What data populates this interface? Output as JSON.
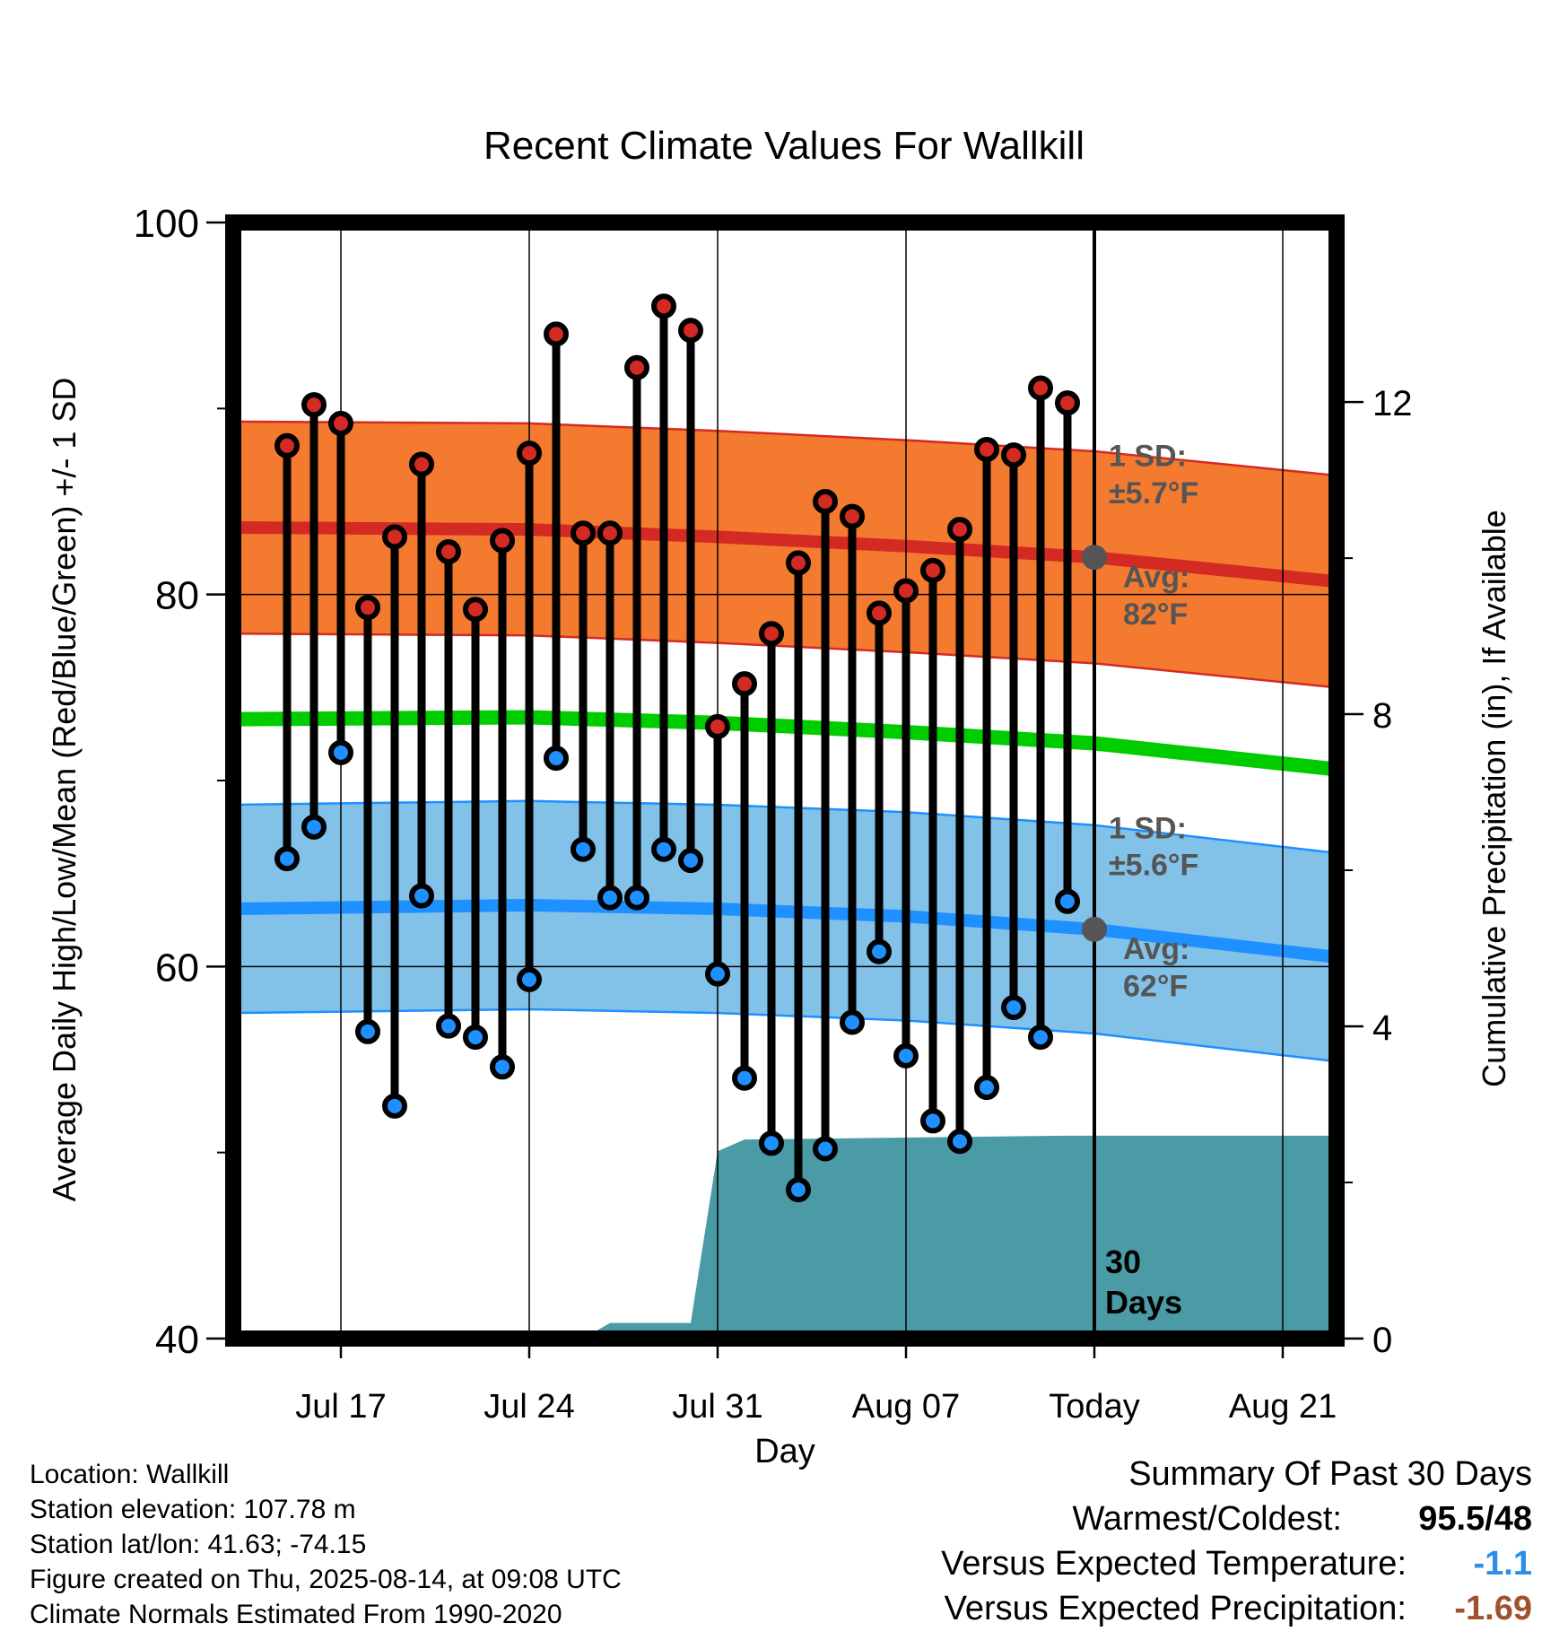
{
  "chart_data": {
    "type": "line",
    "title": "Recent Climate Values For Wallkill",
    "xlabel": "Day",
    "ylabel": "Average Daily High/Low/Mean (Red/Blue/Green) +/- 1 SD",
    "y2label": "Cumulative Precipitation (in), If Available",
    "ylim": [
      40,
      100
    ],
    "y_ticks": [
      "40",
      "60",
      "80",
      "100"
    ],
    "y2lim": [
      0,
      14.3
    ],
    "y2_ticks": [
      "0",
      "4",
      "8",
      "12"
    ],
    "x_ticks": [
      {
        "date": "2025-07-17",
        "label": "Jul 17"
      },
      {
        "date": "2025-07-24",
        "label": "Jul 24"
      },
      {
        "date": "2025-07-31",
        "label": "Jul 31"
      },
      {
        "date": "2025-08-07",
        "label": "Aug 07"
      },
      {
        "date": "2025-08-14",
        "label": "Today"
      },
      {
        "date": "2025-08-21",
        "label": "Aug 21"
      }
    ],
    "xlim": [
      "2025-07-13",
      "2025-08-23"
    ],
    "today": "2025-08-14",
    "days_window_label": [
      "30",
      "Days"
    ],
    "daily": {
      "dates": [
        "2025-07-15",
        "2025-07-16",
        "2025-07-17",
        "2025-07-18",
        "2025-07-19",
        "2025-07-20",
        "2025-07-21",
        "2025-07-22",
        "2025-07-23",
        "2025-07-24",
        "2025-07-25",
        "2025-07-26",
        "2025-07-27",
        "2025-07-28",
        "2025-07-29",
        "2025-07-30",
        "2025-07-31",
        "2025-08-01",
        "2025-08-02",
        "2025-08-03",
        "2025-08-04",
        "2025-08-05",
        "2025-08-06",
        "2025-08-07",
        "2025-08-08",
        "2025-08-09",
        "2025-08-10",
        "2025-08-11",
        "2025-08-12",
        "2025-08-13"
      ],
      "high": [
        88.0,
        90.2,
        89.2,
        79.3,
        83.1,
        87.0,
        82.3,
        79.2,
        82.9,
        87.6,
        94.0,
        83.3,
        83.3,
        92.2,
        95.5,
        94.2,
        72.9,
        75.2,
        77.9,
        81.7,
        85.0,
        84.2,
        79.0,
        80.2,
        81.3,
        83.5,
        87.8,
        87.5,
        91.1,
        90.3
      ],
      "low": [
        65.8,
        67.5,
        71.5,
        56.5,
        52.5,
        63.8,
        56.8,
        56.2,
        54.6,
        59.3,
        71.2,
        66.3,
        63.7,
        63.7,
        66.3,
        65.7,
        59.6,
        54.0,
        50.5,
        48.0,
        50.2,
        57.0,
        60.8,
        55.2,
        51.7,
        50.6,
        53.5,
        57.8,
        56.2,
        63.5
      ]
    },
    "normals": {
      "dates": [
        "2025-07-15",
        "2025-07-24",
        "2025-07-31",
        "2025-08-07",
        "2025-08-14",
        "2025-08-23"
      ],
      "high_avg": [
        83.6,
        83.5,
        83.1,
        82.6,
        82.0,
        80.7
      ],
      "low_avg": [
        63.1,
        63.3,
        63.1,
        62.7,
        62.0,
        60.5
      ],
      "mean_avg": [
        73.3,
        73.4,
        73.1,
        72.6,
        72.0,
        70.6
      ]
    },
    "high_sd_label": [
      "1 SD:",
      "±5.7°F"
    ],
    "high_avg_label": [
      "Avg:",
      "82°F"
    ],
    "low_sd_label": [
      "1 SD:",
      "±5.6°F"
    ],
    "low_avg_label": [
      "Avg:",
      "62°F"
    ],
    "high_sd": 5.7,
    "low_sd": 5.6,
    "precip_cumulative": {
      "dates": [
        "2025-07-13",
        "2025-07-26",
        "2025-07-27",
        "2025-07-30",
        "2025-07-31",
        "2025-08-01",
        "2025-08-13",
        "2025-08-23"
      ],
      "values": [
        0,
        0,
        0.2,
        0.2,
        2.4,
        2.55,
        2.6,
        2.6
      ]
    },
    "colors": {
      "high": "#d42a24",
      "high_band": "#f47a30",
      "low": "#1e90ff",
      "low_band": "#82c2e8",
      "mean": "#00cc00",
      "precip": "#4a9ba5",
      "avg_marker": "#555555",
      "annotation_text": "#555555"
    }
  },
  "info": {
    "location": "Location: Wallkill",
    "elevation": "Station elevation: 107.78 m",
    "latlon": "Station lat/lon: 41.63; -74.15",
    "created": "Figure created on Thu, 2025-08-14, at 09:08 UTC",
    "normals": "Climate Normals Estimated From 1990-2020"
  },
  "summary": {
    "title": "Summary Of Past 30 Days",
    "warmest_label": "Warmest/Coldest:",
    "warmest_high": "95.5",
    "warmest_sep": "/",
    "warmest_low": "48",
    "temp_label": "Versus Expected Temperature:",
    "temp_value": "-1.1",
    "temp_color": "#2b8fe6",
    "precip_label": "Versus Expected Precipitation:",
    "precip_value": "-1.69",
    "precip_color": "#a0522d"
  }
}
